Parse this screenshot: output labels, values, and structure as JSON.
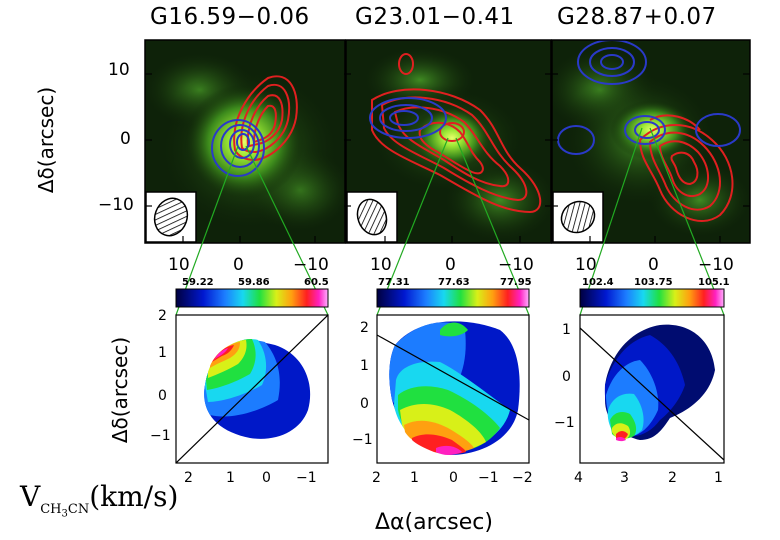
{
  "figure": {
    "panels": [
      {
        "name": "G16.59−0.06",
        "colorbar": {
          "min": "59.22",
          "mid": "59.86",
          "max": "60.5"
        },
        "velocity_x_ticks": [
          "2",
          "1",
          "0",
          "−1"
        ],
        "velocity_y_ticks": [
          "2",
          "1",
          "0",
          "−1"
        ]
      },
      {
        "name": "G23.01−0.41",
        "colorbar": {
          "min": "77.31",
          "mid": "77.63",
          "max": "77.95"
        },
        "velocity_x_ticks": [
          "2",
          "1",
          "0",
          "−1",
          "−2"
        ],
        "velocity_y_ticks": [
          "2",
          "1",
          "0",
          "−1"
        ]
      },
      {
        "name": "G28.87+0.07",
        "colorbar": {
          "min": "102.4",
          "mid": "103.75",
          "max": "105.1"
        },
        "velocity_x_ticks": [
          "4",
          "3",
          "2",
          "1"
        ],
        "velocity_y_ticks": [
          "1",
          "0",
          "−1"
        ]
      }
    ],
    "top_y_ticks": [
      "10",
      "0",
      "−10"
    ],
    "top_x_ticks": [
      "10",
      "0",
      "−10"
    ],
    "top_ylabel": "Δδ(arcsec)",
    "bottom_ylabel": "Δδ(arcsec)",
    "bottom_xlabel": "Δα(arcsec)",
    "velocity_label": {
      "prefix": "V",
      "sub_a": "CH",
      "sub_b": "3",
      "sub_c": "CN",
      "unit": "(km/s)"
    },
    "colors": {
      "red_contour": "#e02020",
      "blue_contour": "#2a3ac8",
      "green_line": "#22aa22"
    }
  }
}
